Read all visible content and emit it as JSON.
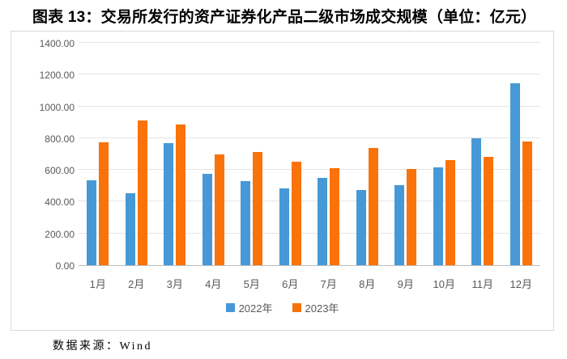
{
  "title": "图表 13：交易所发行的资产证券化产品二级市场成交规模（单位：亿元）",
  "source_note": "数据来源：Wind",
  "colors": {
    "series_2022": "#4699D6",
    "series_2023": "#FA720A",
    "grid": "#E4E4E4",
    "axis_line": "#BFBFBF",
    "tick_label": "#595959",
    "panel_border": "#D9D9D9",
    "title_text": "#000000"
  },
  "chart_data": {
    "type": "bar",
    "title": "图表 13：交易所发行的资产证券化产品二级市场成交规模（单位：亿元）",
    "categories": [
      "1月",
      "2月",
      "3月",
      "4月",
      "5月",
      "6月",
      "7月",
      "8月",
      "9月",
      "10月",
      "11月",
      "12月"
    ],
    "series": [
      {
        "name": "2022年",
        "color": "#4699D6",
        "values": [
          535,
          452,
          768,
          573,
          528,
          483,
          548,
          475,
          502,
          618,
          800,
          1143
        ]
      },
      {
        "name": "2023年",
        "color": "#FA720A",
        "values": [
          775,
          910,
          885,
          698,
          715,
          650,
          612,
          736,
          606,
          662,
          682,
          780
        ]
      }
    ],
    "xlabel": "",
    "ylabel": "",
    "ylim": [
      0,
      1400
    ],
    "ytick_step": 200,
    "ytick_label_format": "0.00",
    "grid": true,
    "legend_position": "bottom",
    "unit": "亿元",
    "source": "Wind"
  }
}
